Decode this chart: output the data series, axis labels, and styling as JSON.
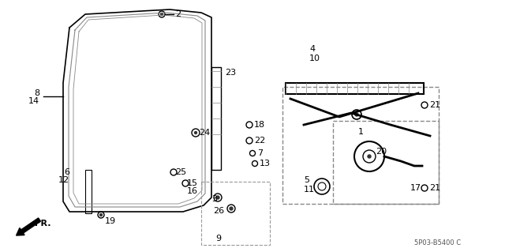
{
  "bg_color": "#ffffff",
  "line_color": "#000000",
  "gray_line": "#888888",
  "light_gray": "#cccccc",
  "dashed_box_color": "#aaaaaa",
  "watermark": "5P03-B5400 C",
  "fr_label": "FR.",
  "figsize": [
    6.4,
    3.19
  ],
  "dpi": 100
}
